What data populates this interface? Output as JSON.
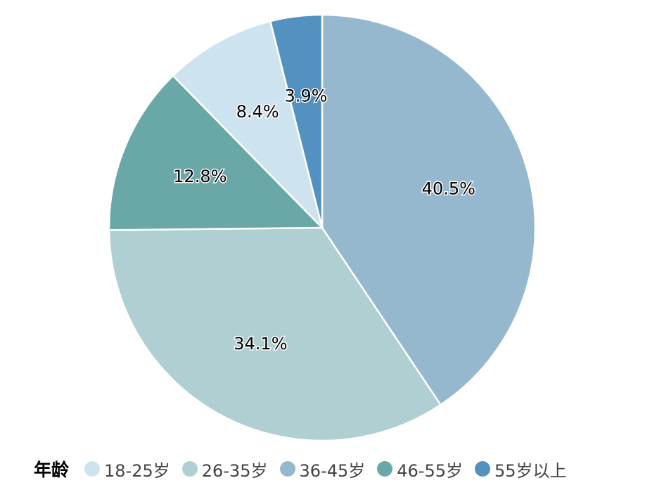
{
  "chart_data": {
    "type": "pie",
    "title": "",
    "legend_title": "年龄",
    "legend_position": "bottom",
    "categories": [
      "18-25岁",
      "26-35岁",
      "36-45岁",
      "46-55岁",
      "55岁以上"
    ],
    "values": [
      8.4,
      34.1,
      40.5,
      12.8,
      3.9
    ],
    "value_labels": [
      "8.4%",
      "34.1%",
      "40.5%",
      "12.8%",
      "3.9%"
    ],
    "colors": [
      "#cde4f0",
      "#b0cfd3",
      "#96b8ce",
      "#6aa8a8",
      "#5392c0"
    ],
    "draw_order": [
      2,
      1,
      3,
      0,
      4
    ]
  }
}
